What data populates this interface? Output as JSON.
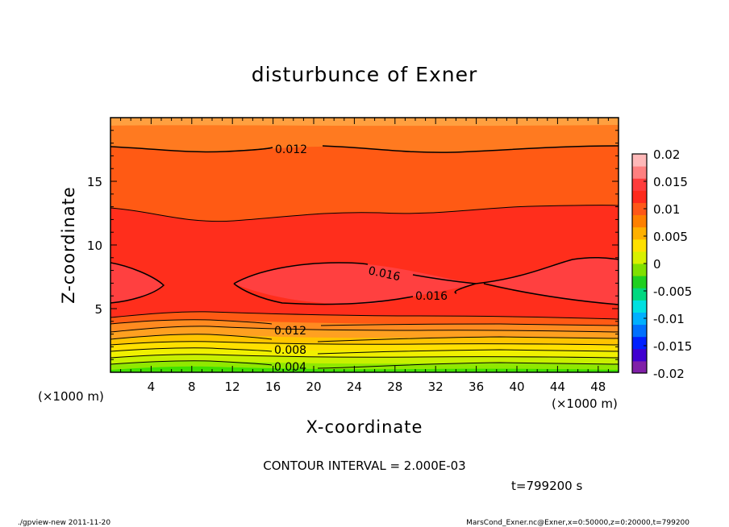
{
  "chart_data": {
    "type": "heatmap",
    "title": "disturbunce of Exner",
    "xlabel": "X-coordinate",
    "ylabel": "Z-coordinate",
    "x_unit": "(×1000 m)",
    "xlim": [
      0,
      50
    ],
    "ylim": [
      0,
      20
    ],
    "x_ticks": [
      "4",
      "8",
      "12",
      "16",
      "20",
      "24",
      "28",
      "32",
      "36",
      "40",
      "44",
      "48"
    ],
    "y_ticks": [
      "5",
      "10",
      "15"
    ],
    "contour_interval_text": "CONTOUR INTERVAL = 2.000E-03",
    "contour_labels": [
      "0.012",
      "0.016",
      "0.016",
      "0.012",
      "0.008",
      "0.004"
    ],
    "colorbar": {
      "labels": [
        "0.02",
        "0.015",
        "0.01",
        "0.005",
        "0",
        "-0.005",
        "-0.01",
        "-0.015",
        "-0.02"
      ],
      "min": -0.02,
      "max": 0.02,
      "colors": [
        "#8020a8",
        "#4000d0",
        "#0020ff",
        "#0070ff",
        "#00b0ff",
        "#00e0e0",
        "#00d880",
        "#20d020",
        "#80e000",
        "#d8f000",
        "#ffe000",
        "#ffb000",
        "#ff8000",
        "#ff5818",
        "#ff2a1c",
        "#ff3c3c",
        "#ff8080",
        "#ffb8b8"
      ]
    },
    "time_text": "t=799200 s"
  },
  "footer": {
    "left": "./gpview-new  2011-11-20",
    "right": "MarsCond_Exner.nc@Exner,x=0:50000,z=0:20000,t=799200"
  }
}
